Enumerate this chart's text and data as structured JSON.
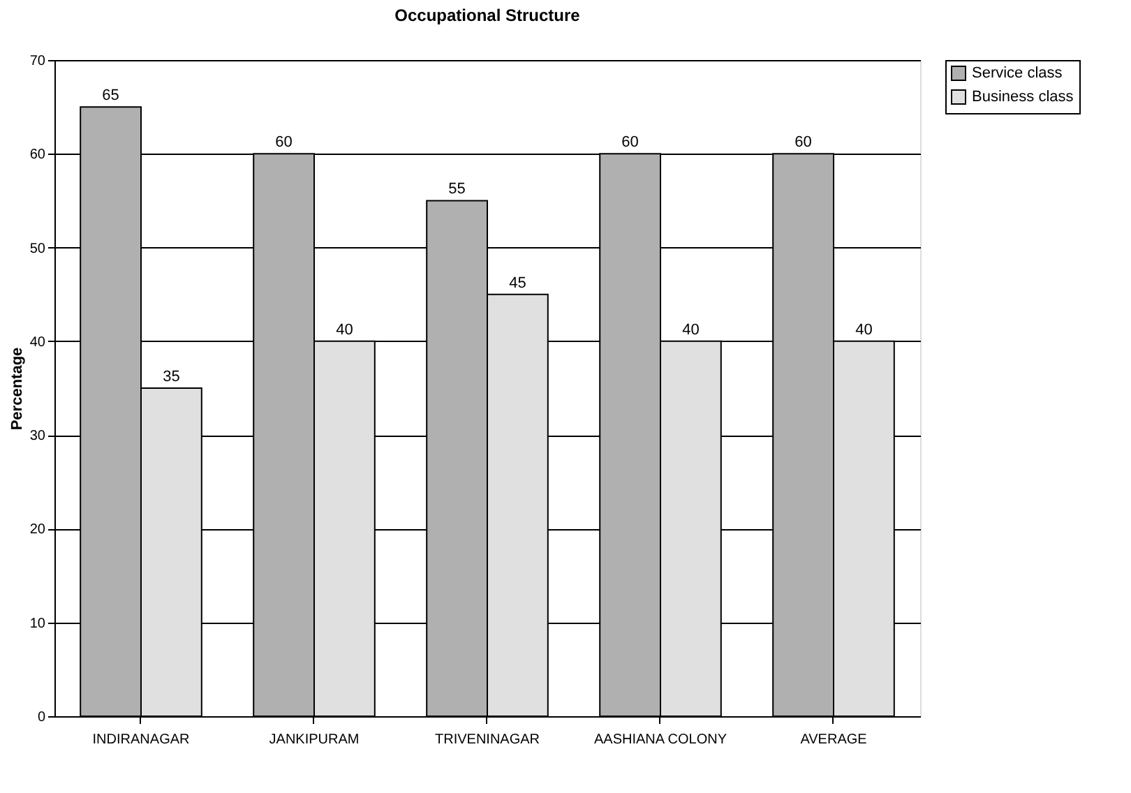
{
  "chart_data": {
    "type": "bar",
    "title": "Occupational Structure",
    "ylabel": "Percentage",
    "categories": [
      "INDIRANAGAR",
      "JANKIPURAM",
      "TRIVENINAGAR",
      "AASHIANA COLONY",
      "AVERAGE"
    ],
    "series": [
      {
        "name": "Service class",
        "color": "#b0b0b0",
        "values": [
          65,
          60,
          55,
          60,
          60
        ]
      },
      {
        "name": "Business class",
        "color": "#e0e0e0",
        "values": [
          35,
          40,
          45,
          40,
          40
        ]
      }
    ],
    "ylim": [
      0,
      70
    ],
    "yticks": [
      0,
      10,
      20,
      30,
      40,
      50,
      60,
      70
    ],
    "grid": "y",
    "legend": "right",
    "data_labels": true
  }
}
